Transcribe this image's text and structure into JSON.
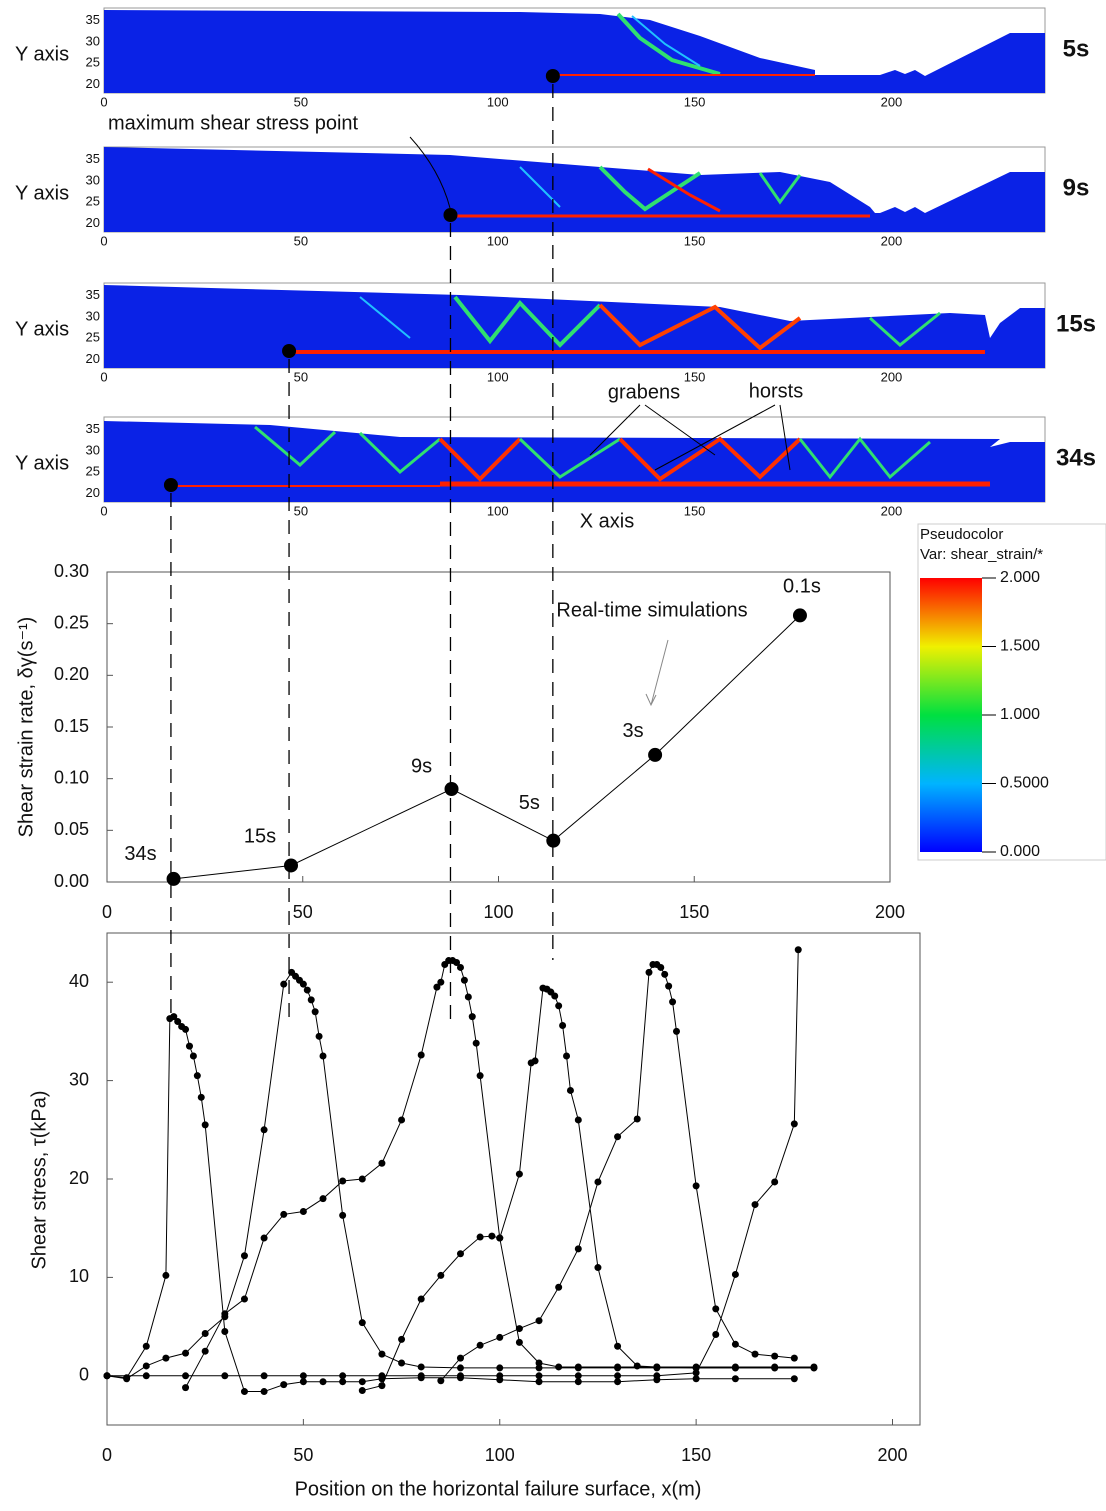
{
  "chart_data": [
    {
      "type": "field",
      "ylabel": "Y axis",
      "xlabel": "X axis",
      "xlim": [
        0,
        239
      ],
      "ylim": [
        18,
        38
      ],
      "xticks": [
        0,
        50,
        100,
        150,
        200
      ],
      "yticks": [
        20,
        25,
        30,
        35
      ],
      "marker_note": "maximum shear stress point",
      "annotations": [
        "grabens",
        "horsts"
      ],
      "panels": [
        {
          "time": "5s",
          "marker": {
            "x": 114,
            "y": 22
          }
        },
        {
          "time": "9s",
          "marker": {
            "x": 88,
            "y": 22
          }
        },
        {
          "time": "15s",
          "marker": {
            "x": 47,
            "y": 22
          }
        },
        {
          "time": "34s",
          "marker": {
            "x": 17,
            "y": 22
          }
        }
      ]
    },
    {
      "type": "line",
      "ylabel": "Shear strain rate, δγ(s⁻¹)",
      "annotation": "Real-time simulations",
      "x": [
        17,
        47,
        88,
        114,
        140,
        177
      ],
      "values": [
        0.003,
        0.016,
        0.09,
        0.04,
        0.123,
        0.258
      ],
      "color": "#000000",
      "point_labels": [
        "34s",
        "15s",
        "9s",
        "5s",
        "3s",
        "0.1s"
      ],
      "xlim": [
        0,
        200
      ],
      "ylim": [
        0,
        0.3
      ],
      "xticks": [
        0,
        50,
        100,
        150,
        200
      ],
      "yticks": [
        {
          "value": 0,
          "label": "0.00"
        },
        {
          "value": 0.05,
          "label": "0.05"
        },
        {
          "value": 0.1,
          "label": "0.10"
        },
        {
          "value": 0.15,
          "label": "0.15"
        },
        {
          "value": 0.2,
          "label": "0.20"
        },
        {
          "value": 0.25,
          "label": "0.25"
        },
        {
          "value": 0.3,
          "label": "0.30"
        }
      ]
    },
    {
      "type": "line",
      "ylabel": "Shear stress, τ(kPa)",
      "xlabel": "Position on the horizontal failure surface, x(m)",
      "xlim": [
        0,
        207
      ],
      "ylim": [
        -5,
        45
      ],
      "xticks": [
        0,
        50,
        100,
        150,
        200
      ],
      "yticks": [
        0,
        10,
        20,
        30,
        40
      ],
      "series": [
        {
          "color": "#000000",
          "x": [
            0,
            5,
            10,
            15,
            16,
            17,
            18,
            19,
            20,
            21,
            22,
            23,
            24,
            25,
            30,
            35,
            40,
            45,
            50,
            55,
            60,
            65,
            70,
            80,
            90,
            100,
            110,
            120,
            130,
            140,
            150,
            160,
            175
          ],
          "values": [
            0,
            -0.2,
            3,
            10.2,
            36.3,
            36.5,
            36,
            35.5,
            35.2,
            33.5,
            32.5,
            30.5,
            28.3,
            25.5,
            4.5,
            -1.6,
            -1.6,
            -0.9,
            -0.6,
            -0.6,
            -0.6,
            -0.6,
            -0.3,
            -0.2,
            -0.2,
            -0.4,
            -0.6,
            -0.6,
            -0.6,
            -0.4,
            -0.3,
            -0.3,
            -0.3
          ]
        },
        {
          "color": "#000000",
          "x": [
            0,
            5,
            10,
            15,
            20,
            25,
            30,
            35,
            40,
            45,
            47,
            48,
            49,
            50,
            51,
            52,
            53,
            54,
            55,
            60,
            65,
            70,
            75,
            80,
            90,
            100,
            110,
            120,
            130,
            140,
            150,
            160,
            170,
            180
          ],
          "values": [
            0,
            -0.3,
            1,
            1.8,
            2.3,
            4.3,
            6,
            12.2,
            25,
            39.8,
            41,
            40.6,
            40.2,
            39.8,
            39.2,
            38.2,
            37,
            34.5,
            32.5,
            16.3,
            5.4,
            2.2,
            1.3,
            0.9,
            0.8,
            0.8,
            0.8,
            0.8,
            0.8,
            0.8,
            0.8,
            0.8,
            0.8,
            0.8
          ]
        },
        {
          "color": "#000000",
          "x": [
            20,
            25,
            30,
            35,
            40,
            45,
            50,
            55,
            60,
            65,
            70,
            75,
            80,
            84,
            85,
            86,
            87,
            88,
            89,
            90,
            91,
            92,
            93,
            94,
            95,
            100,
            105,
            110,
            115,
            120,
            130,
            140,
            150,
            160,
            170,
            180
          ],
          "values": [
            -1.2,
            2.5,
            6.3,
            7.8,
            14,
            16.4,
            16.7,
            18,
            19.8,
            20,
            21.6,
            26,
            32.6,
            39.5,
            40,
            41.8,
            42.2,
            42.2,
            42,
            41.5,
            40.2,
            38.5,
            36.5,
            33.8,
            30.5,
            14,
            3.4,
            1.3,
            0.9,
            0.9,
            0.9,
            0.9,
            0.9,
            0.9,
            0.9,
            0.9
          ]
        },
        {
          "color": "#000000",
          "x": [
            65,
            70,
            75,
            80,
            85,
            90,
            95,
            98,
            100,
            105,
            108,
            109,
            111,
            112,
            113,
            114,
            115,
            116,
            117,
            118,
            120,
            125,
            130,
            135,
            140,
            150,
            160,
            170,
            180
          ],
          "values": [
            -1.5,
            -1,
            3.7,
            7.8,
            10.2,
            12.4,
            14.1,
            14.2,
            14,
            20.5,
            31.8,
            32,
            39.4,
            39.3,
            39,
            38.6,
            37.6,
            35.6,
            32.5,
            29,
            26,
            11,
            3,
            1,
            0.9,
            0.8,
            0.8,
            0.8,
            0.8
          ]
        },
        {
          "color": "#000000",
          "x": [
            85,
            90,
            95,
            100,
            105,
            110,
            115,
            120,
            125,
            130,
            135,
            138,
            139,
            140,
            141,
            142,
            143,
            144,
            145,
            150,
            155,
            160,
            165,
            170,
            175
          ],
          "values": [
            -0.5,
            1.8,
            3.1,
            3.9,
            4.8,
            5.6,
            9,
            12.9,
            19.7,
            24.3,
            26.1,
            41,
            41.8,
            41.8,
            41.5,
            40.8,
            39.6,
            38,
            35,
            19.3,
            6.8,
            3.2,
            2.2,
            2,
            1.8
          ]
        },
        {
          "color": "#000000",
          "x": [
            0,
            10,
            20,
            30,
            40,
            50,
            60,
            70,
            80,
            90,
            100,
            110,
            120,
            130,
            140,
            150,
            155,
            160,
            165,
            170,
            175,
            176
          ],
          "values": [
            0,
            0,
            0,
            0,
            0,
            0,
            0,
            0,
            0,
            0,
            0,
            0,
            0,
            0,
            0,
            0.3,
            4.2,
            10.3,
            17.4,
            19.7,
            25.6,
            43.3
          ]
        }
      ]
    },
    {
      "type": "colorbar",
      "title": "Pseudocolor",
      "subtitle": "Var: shear_strain/*",
      "lim": [
        0,
        2
      ],
      "ticks": [
        {
          "value": 2,
          "label": "2.000"
        },
        {
          "value": 1.5,
          "label": "1.500"
        },
        {
          "value": 1,
          "label": "1.000"
        },
        {
          "value": 0.5,
          "label": "0.5000"
        },
        {
          "value": 0,
          "label": "0.000"
        }
      ]
    }
  ]
}
